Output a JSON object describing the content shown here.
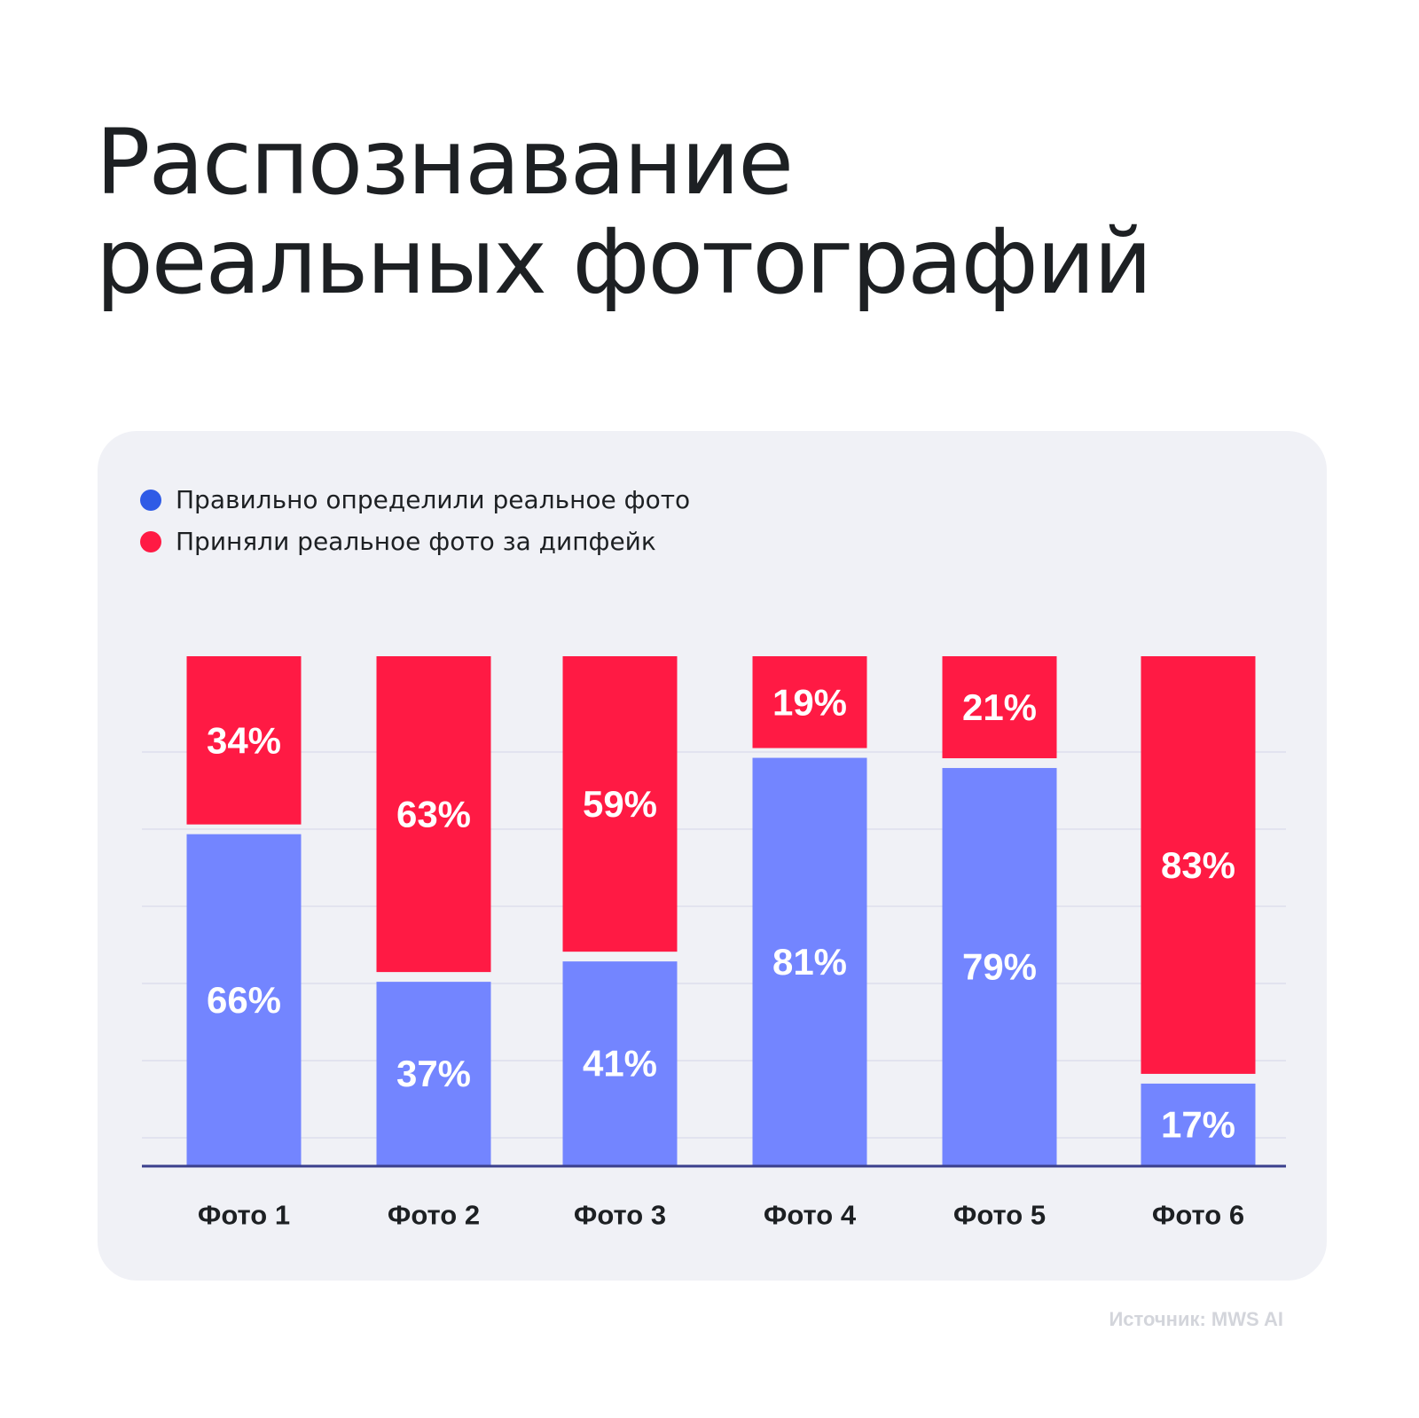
{
  "title": {
    "line1": "Распознавание",
    "line2": "реальных фотографий"
  },
  "legend": [
    {
      "label": "Правильно определили реальное фото",
      "color": "#2f5be6"
    },
    {
      "label": "Приняли реальное фото за дипфейк",
      "color": "#ff1a44"
    }
  ],
  "colors": {
    "correct_bar": "#7385ff",
    "deepfake_bar": "#ff1a44",
    "axis": "#3a3f8c",
    "grid": "#e2e3ef",
    "bar_label": "#ffffff",
    "category_label": "#1d2023"
  },
  "chart_data": {
    "type": "bar",
    "stacked": true,
    "title": "Распознавание реальных фотографий",
    "categories": [
      "Фото 1",
      "Фото 2",
      "Фото 3",
      "Фото 4",
      "Фото 5",
      "Фото 6"
    ],
    "series": [
      {
        "name": "Правильно определили реальное фото",
        "values": [
          66,
          37,
          41,
          81,
          79,
          17
        ],
        "labels": [
          "66%",
          "37%",
          "41%",
          "81%",
          "79%",
          "17%"
        ]
      },
      {
        "name": "Приняли реальное фото за дипфейк",
        "values": [
          34,
          63,
          59,
          19,
          21,
          83
        ],
        "labels": [
          "34%",
          "63%",
          "59%",
          "19%",
          "21%",
          "83%"
        ]
      }
    ],
    "ylim": [
      0,
      100
    ],
    "unit": "%",
    "xlabel": "",
    "ylabel": "",
    "legend_position": "top-left"
  },
  "source": "Источник: MWS AI"
}
